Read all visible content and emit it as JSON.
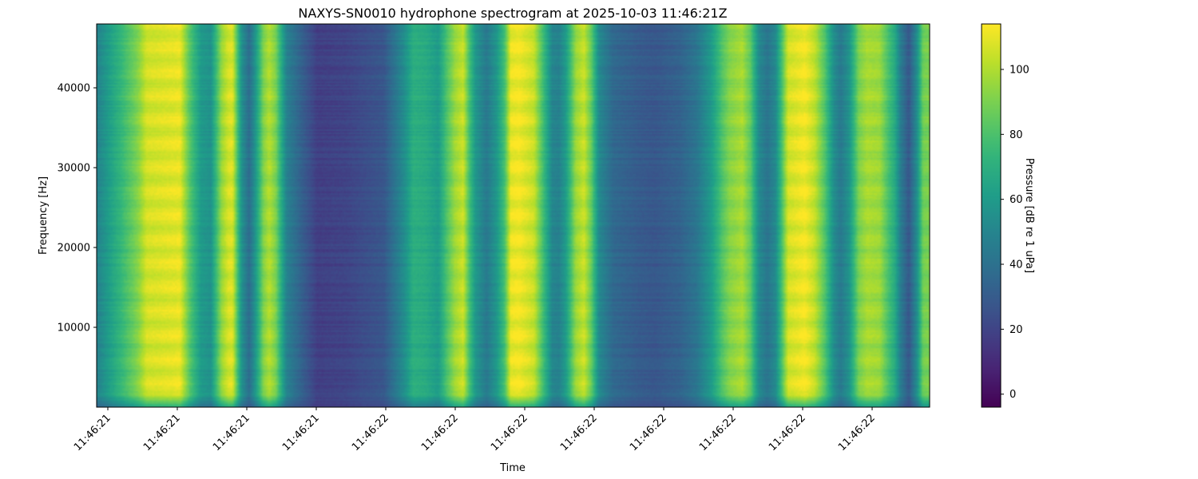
{
  "chart_data": {
    "type": "heatmap",
    "title": "NAXYS-SN0010 hydrophone spectrogram at 2025-10-03 11:46:21Z",
    "xlabel": "Time",
    "ylabel": "Frequency [Hz]",
    "colorbar_label": "Pressure [dB re 1 uPa]",
    "colormap": "viridis",
    "ylim": [
      0,
      48000
    ],
    "y_ticks": [
      10000,
      20000,
      30000,
      40000
    ],
    "x_tick_labels": [
      "11:46:21",
      "11:46:21",
      "11:46:21",
      "11:46:21",
      "11:46:22",
      "11:46:22",
      "11:46:22",
      "11:46:22",
      "11:46:22",
      "11:46:22",
      "11:46:22",
      "11:46:22"
    ],
    "x_tick_rotation_deg": 45,
    "color_range": [
      -4,
      114
    ],
    "colorbar_ticks": [
      0,
      20,
      40,
      60,
      80,
      100
    ],
    "time_profile": [
      [
        0.0,
        48
      ],
      [
        0.013,
        60
      ],
      [
        0.05,
        92
      ],
      [
        0.06,
        106
      ],
      [
        0.1,
        110
      ],
      [
        0.112,
        82
      ],
      [
        0.125,
        60
      ],
      [
        0.137,
        56
      ],
      [
        0.15,
        95
      ],
      [
        0.158,
        106
      ],
      [
        0.163,
        108
      ],
      [
        0.174,
        56
      ],
      [
        0.183,
        38
      ],
      [
        0.19,
        56
      ],
      [
        0.2,
        90
      ],
      [
        0.207,
        100
      ],
      [
        0.215,
        90
      ],
      [
        0.228,
        48
      ],
      [
        0.245,
        33
      ],
      [
        0.265,
        18
      ],
      [
        0.3,
        20
      ],
      [
        0.345,
        28
      ],
      [
        0.37,
        55
      ],
      [
        0.38,
        70
      ],
      [
        0.395,
        68
      ],
      [
        0.41,
        60
      ],
      [
        0.42,
        80
      ],
      [
        0.43,
        96
      ],
      [
        0.44,
        104
      ],
      [
        0.447,
        80
      ],
      [
        0.455,
        58
      ],
      [
        0.468,
        44
      ],
      [
        0.48,
        58
      ],
      [
        0.49,
        80
      ],
      [
        0.497,
        110
      ],
      [
        0.507,
        112
      ],
      [
        0.525,
        104
      ],
      [
        0.535,
        80
      ],
      [
        0.547,
        50
      ],
      [
        0.555,
        48
      ],
      [
        0.563,
        60
      ],
      [
        0.575,
        95
      ],
      [
        0.585,
        104
      ],
      [
        0.594,
        85
      ],
      [
        0.603,
        52
      ],
      [
        0.62,
        36
      ],
      [
        0.65,
        30
      ],
      [
        0.67,
        28
      ],
      [
        0.7,
        33
      ],
      [
        0.72,
        42
      ],
      [
        0.738,
        60
      ],
      [
        0.75,
        80
      ],
      [
        0.76,
        92
      ],
      [
        0.775,
        98
      ],
      [
        0.785,
        84
      ],
      [
        0.795,
        52
      ],
      [
        0.805,
        42
      ],
      [
        0.815,
        52
      ],
      [
        0.83,
        106
      ],
      [
        0.85,
        112
      ],
      [
        0.862,
        103
      ],
      [
        0.875,
        80
      ],
      [
        0.885,
        54
      ],
      [
        0.893,
        44
      ],
      [
        0.903,
        56
      ],
      [
        0.915,
        90
      ],
      [
        0.925,
        98
      ],
      [
        0.94,
        96
      ],
      [
        0.95,
        80
      ],
      [
        0.958,
        68
      ],
      [
        0.965,
        46
      ],
      [
        0.975,
        28
      ],
      [
        0.985,
        55
      ],
      [
        0.992,
        88
      ],
      [
        1.0,
        90
      ]
    ],
    "low_frequency_rolloff_below_hz": 1500
  }
}
